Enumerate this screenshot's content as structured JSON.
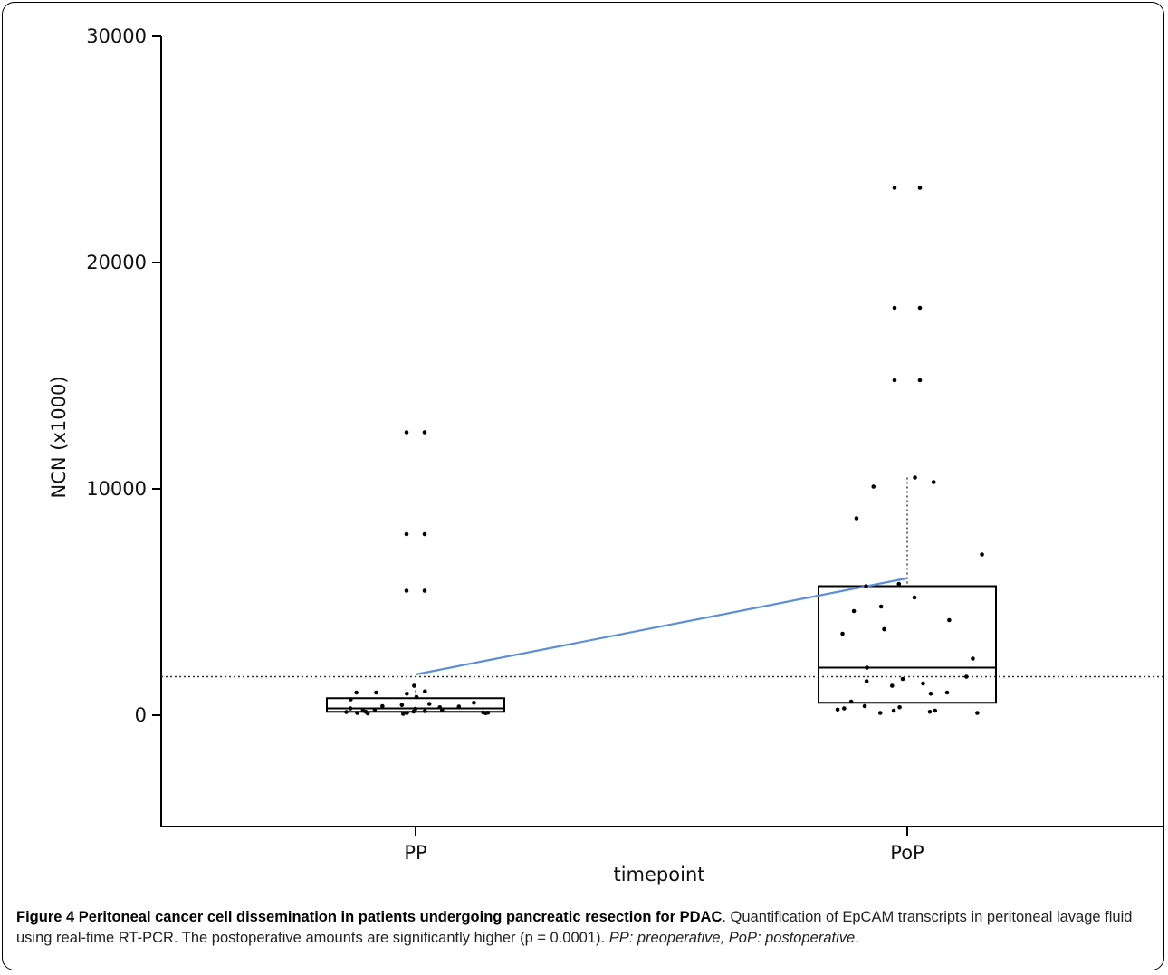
{
  "chart_data": {
    "type": "box",
    "xlabel": "timepoint",
    "ylabel": "NCN (x1000)",
    "ylim": [
      -5000,
      30000
    ],
    "yticks": [
      0,
      10000,
      20000,
      30000
    ],
    "ytick_labels": [
      "0",
      "10000",
      "20000",
      "30000"
    ],
    "categories": [
      "PP",
      "PoP"
    ],
    "reference_line": 1700,
    "mean_line": [
      1800,
      6050
    ],
    "boxes": [
      {
        "category": "PP",
        "q1": 150,
        "median": 300,
        "q3": 750,
        "whisker_high": 1300
      },
      {
        "category": "PoP",
        "q1": 550,
        "median": 2100,
        "q3": 5700,
        "whisker_high": 10500
      }
    ],
    "points": [
      {
        "category": "PP",
        "values": [
          12500,
          12500,
          8000,
          8000,
          5500,
          5500,
          1300,
          1050,
          1000,
          1000,
          950,
          800,
          700,
          550,
          500,
          450,
          400,
          380,
          350,
          300,
          280,
          250,
          220,
          200,
          180,
          160,
          150,
          140,
          120,
          110,
          100,
          100,
          90,
          80,
          60
        ]
      },
      {
        "category": "PoP",
        "values": [
          23300,
          23300,
          18000,
          18000,
          14800,
          14800,
          10500,
          10300,
          10100,
          8700,
          7100,
          5800,
          5700,
          5200,
          4800,
          4600,
          4200,
          3800,
          3800,
          3600,
          2500,
          2100,
          1700,
          1600,
          1500,
          1400,
          1300,
          1000,
          950,
          600,
          400,
          350,
          300,
          250,
          200,
          200,
          150,
          100,
          100
        ]
      }
    ]
  },
  "caption": {
    "title": "Figure 4 Peritoneal cancer cell dissemination in patients undergoing pancreatic resection for PDAC",
    "text": ". Quantification of EpCAM transcripts in peritoneal lavage fluid using real-time RT-PCR. The postoperative amounts are significantly higher (p = 0.0001). ",
    "note": "PP: preoperative, PoP: postoperative",
    "end": "."
  },
  "colors": {
    "mean_line": "#5b8fd6",
    "points": "#000000",
    "axis": "#000000"
  }
}
